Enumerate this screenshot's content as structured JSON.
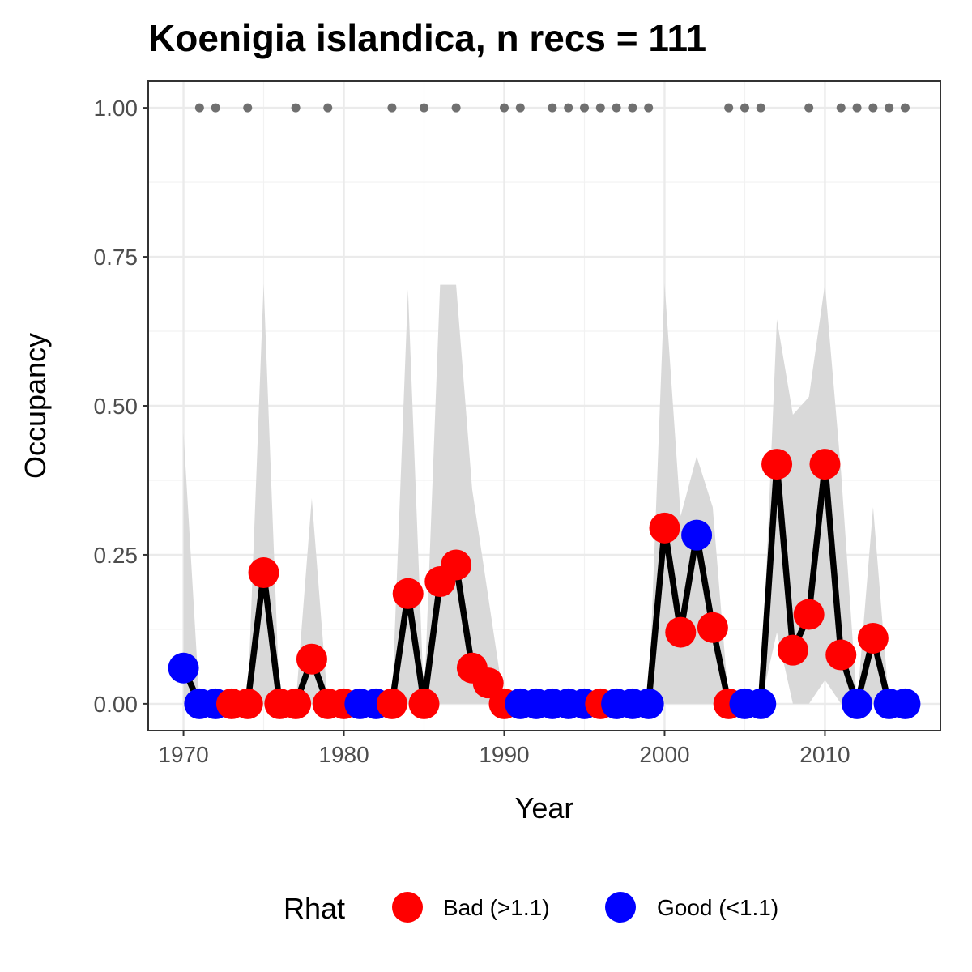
{
  "chart_data": {
    "type": "line",
    "title": "Koenigia islandica, n recs = 111",
    "xlabel": "Year",
    "ylabel": "Occupancy",
    "xlim": [
      1967.8,
      2017.2
    ],
    "ylim": [
      -0.045,
      1.045
    ],
    "x_ticks": [
      1970,
      1980,
      1990,
      2000,
      2010
    ],
    "x_tick_labels": [
      "1970",
      "1980",
      "1990",
      "2000",
      "2010"
    ],
    "y_ticks": [
      0,
      0.25,
      0.5,
      0.75,
      1.0
    ],
    "y_tick_labels": [
      "0.00",
      "0.25",
      "0.50",
      "0.75",
      "1.00"
    ],
    "grid": true,
    "legend": {
      "title": "Rhat",
      "position": "bottom",
      "entries": [
        {
          "label": "Bad (>1.1)",
          "color": "#ff0000"
        },
        {
          "label": "Good (<1.1)",
          "color": "#0000ff"
        }
      ]
    },
    "colors": {
      "bad": "#ff0000",
      "good": "#0000ff",
      "line": "#000000",
      "ribbon": "#d9d9d9",
      "record_dots": "#707070"
    },
    "series": [
      {
        "x": [
          1970,
          1971,
          1972,
          1973,
          1974,
          1975,
          1976,
          1977,
          1978,
          1979,
          1980,
          1981,
          1982,
          1983,
          1984,
          1985,
          1986,
          1987,
          1988,
          1989,
          1990,
          1991,
          1992,
          1993,
          1994,
          1995,
          1996,
          1997,
          1998,
          1999,
          2000,
          2001,
          2002,
          2003,
          2004,
          2005,
          2006,
          2007,
          2008,
          2009,
          2010,
          2011,
          2012,
          2013,
          2014,
          2015
        ],
        "y": [
          0.06,
          0,
          0,
          0,
          0,
          0.22,
          0,
          0,
          0.075,
          0,
          0,
          0,
          0,
          0,
          0.185,
          0,
          0.205,
          0.233,
          0.06,
          0.035,
          0,
          0,
          0,
          0,
          0,
          0,
          0,
          0,
          0,
          0,
          0.295,
          0.12,
          0.283,
          0.128,
          0,
          0,
          0,
          0.402,
          0.09,
          0.15,
          0.402,
          0.082,
          0,
          0.11,
          0,
          0
        ],
        "lower": [
          0,
          0,
          0,
          0,
          0,
          0,
          0,
          0,
          0,
          0,
          0,
          0,
          0,
          0,
          0,
          0,
          0,
          0,
          0,
          0,
          0,
          0,
          0,
          0,
          0,
          0,
          0,
          0,
          0,
          0,
          0,
          0,
          0,
          0,
          0,
          0,
          0,
          0.12,
          0,
          0,
          0.04,
          0,
          0,
          0,
          0,
          0
        ],
        "upper": [
          0.455,
          0,
          0,
          0,
          0,
          0.705,
          0,
          0,
          0.345,
          0,
          0,
          0,
          0,
          0,
          0.695,
          0,
          0.703,
          0.703,
          0.36,
          0.18,
          0,
          0,
          0,
          0,
          0,
          0,
          0,
          0,
          0,
          0,
          0.705,
          0.315,
          0.415,
          0.33,
          0,
          0,
          0,
          0.645,
          0.485,
          0.515,
          0.705,
          0.39,
          0,
          0.33,
          0,
          0
        ],
        "rhat": [
          "good",
          "good",
          "good",
          "bad",
          "bad",
          "bad",
          "bad",
          "bad",
          "bad",
          "bad",
          "bad",
          "good",
          "good",
          "bad",
          "bad",
          "bad",
          "bad",
          "bad",
          "bad",
          "bad",
          "bad",
          "good",
          "good",
          "good",
          "good",
          "good",
          "bad",
          "good",
          "good",
          "good",
          "bad",
          "bad",
          "good",
          "bad",
          "bad",
          "good",
          "good",
          "bad",
          "bad",
          "bad",
          "bad",
          "bad",
          "good",
          "bad",
          "good",
          "good"
        ]
      }
    ],
    "record_years": {
      "y": 1,
      "x": [
        1971,
        1972,
        1974,
        1977,
        1979,
        1983,
        1985,
        1987,
        1990,
        1991,
        1993,
        1994,
        1995,
        1996,
        1997,
        1998,
        1999,
        2004,
        2005,
        2006,
        2009,
        2011,
        2012,
        2013,
        2014,
        2015
      ]
    }
  }
}
